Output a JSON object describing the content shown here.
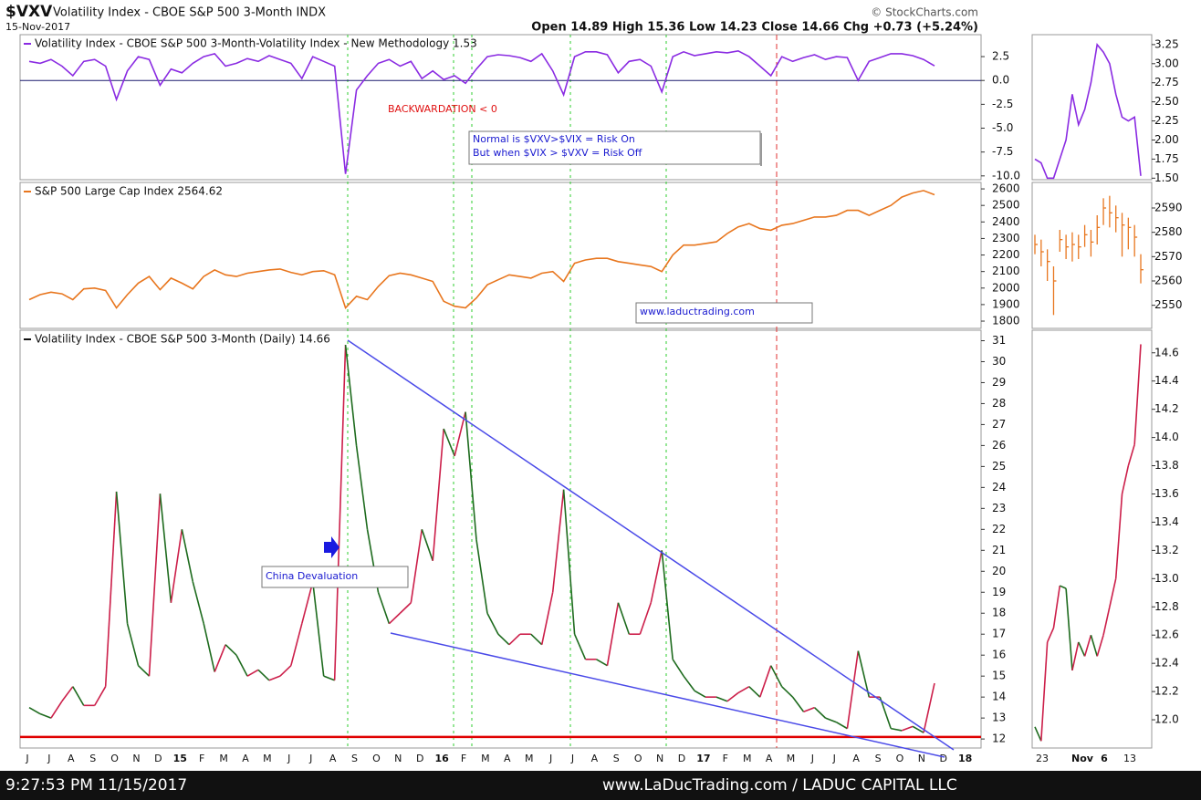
{
  "header": {
    "symbol": "$VXV",
    "name": "Volatility Index - CBOE S&P 500 3-Month INDX",
    "date": "15-Nov-2017",
    "source": "© StockCharts.com",
    "quote": "Open 14.89  High 15.36  Low 14.23  Close 14.66  Chg +0.73 (+5.24%)"
  },
  "annotations": {
    "backwardation": "BACKWARDATION < 0",
    "normal": "Normal is $VXV>$VIX = Risk On",
    "risk_off": "But when $VIX > $VXV = Risk Off",
    "website": "www.laductrading.com",
    "china": "China Devaluation"
  },
  "footer": {
    "timestamp": "9:27:53 PM 11/15/2017",
    "credit": "www.LaDucTrading.com / LADUC CAPITAL LLC"
  },
  "chart_data": [
    {
      "type": "line",
      "name": "Volatility Index - CBOE S&P 500 3-Month-Volatility Index - New Methodology 1.53",
      "color": "#8a2be2",
      "ylim": [
        -10.4,
        4.8
      ],
      "yticks": [
        2.5,
        {
          "value": 0,
          "label": "0.0"
        },
        -2.5,
        {
          "value": -5,
          "label": "-5.0"
        },
        -7.5,
        {
          "value": -10,
          "label": "-10.0"
        }
      ],
      "reference_line": 0,
      "reference_color": "#1a1a6e",
      "values": [
        2.0,
        1.8,
        2.2,
        1.5,
        0.5,
        2.0,
        2.2,
        1.5,
        -2.0,
        1.0,
        2.5,
        2.2,
        -0.5,
        1.2,
        0.8,
        1.8,
        2.5,
        2.8,
        1.5,
        1.8,
        2.3,
        2.0,
        2.6,
        2.2,
        1.8,
        0.2,
        2.5,
        2.0,
        1.5,
        -9.8,
        -1.0,
        0.5,
        1.8,
        2.2,
        1.5,
        2.0,
        0.2,
        1.0,
        0.1,
        0.5,
        -0.3,
        1.2,
        2.5,
        2.7,
        2.6,
        2.4,
        2.0,
        2.8,
        1.0,
        -1.5,
        2.5,
        3.0,
        3.0,
        2.7,
        0.8,
        2.0,
        2.2,
        1.5,
        -1.2,
        2.5,
        3.0,
        2.6,
        2.8,
        3.0,
        2.9,
        3.1,
        2.5,
        1.5,
        0.5,
        2.5,
        2.0,
        2.4,
        2.7,
        2.2,
        2.5,
        2.4,
        0.0,
        2.0,
        2.4,
        2.8,
        2.8,
        2.6,
        2.2,
        1.53
      ]
    },
    {
      "type": "line",
      "name": "S&P 500 Large Cap Index 2564.62",
      "color": "#e8761e",
      "ylim": [
        1756,
        2639
      ],
      "yticks": [
        2600,
        2500,
        2400,
        2300,
        2200,
        2100,
        2000,
        1900,
        1800
      ],
      "values": [
        1930,
        1960,
        1975,
        1965,
        1930,
        1995,
        2000,
        1985,
        1880,
        1960,
        2030,
        2070,
        1990,
        2060,
        2030,
        1995,
        2070,
        2110,
        2080,
        2070,
        2090,
        2100,
        2110,
        2115,
        2095,
        2080,
        2100,
        2105,
        2080,
        1880,
        1950,
        1930,
        2010,
        2075,
        2090,
        2080,
        2060,
        2040,
        1920,
        1890,
        1880,
        1940,
        2020,
        2050,
        2080,
        2070,
        2060,
        2090,
        2100,
        2040,
        2150,
        2170,
        2180,
        2180,
        2160,
        2150,
        2140,
        2130,
        2100,
        2200,
        2260,
        2260,
        2270,
        2280,
        2330,
        2370,
        2390,
        2360,
        2350,
        2380,
        2390,
        2410,
        2430,
        2430,
        2440,
        2470,
        2470,
        2440,
        2470,
        2500,
        2550,
        2575,
        2590,
        2564.62
      ]
    },
    {
      "type": "line",
      "name": "Volatility Index - CBOE S&P 500 3-Month (Daily) 14.66",
      "up_color": "#cc1f4a",
      "down_color": "#1e6b1e",
      "ylim": [
        11.57,
        31.5
      ],
      "yticks": [
        31,
        30,
        29,
        28,
        27,
        26,
        25,
        24,
        23,
        22,
        21,
        20,
        19,
        18,
        17,
        16,
        15,
        14,
        13,
        12
      ],
      "reference_line": 12.1,
      "reference_color": "#e00000",
      "x_labels": [
        "J",
        "J",
        "A",
        "S",
        "O",
        "N",
        "D",
        "15",
        "F",
        "M",
        "A",
        "M",
        "J",
        "J",
        "A",
        "S",
        "O",
        "N",
        "D",
        "16",
        "F",
        "M",
        "A",
        "M",
        "J",
        "J",
        "A",
        "S",
        "O",
        "N",
        "D",
        "17",
        "F",
        "M",
        "A",
        "M",
        "J",
        "J",
        "A",
        "S",
        "O",
        "N",
        "D",
        "18"
      ],
      "values": [
        13.5,
        13.2,
        13.0,
        13.8,
        14.5,
        13.6,
        13.6,
        14.5,
        23.8,
        17.5,
        15.5,
        15.0,
        23.7,
        18.5,
        22.0,
        19.5,
        17.5,
        15.2,
        16.5,
        16.0,
        15.0,
        15.3,
        14.8,
        15.0,
        15.5,
        17.5,
        19.5,
        15.0,
        14.8,
        30.8,
        26.0,
        22.0,
        19.0,
        17.5,
        18.0,
        18.5,
        22.0,
        20.5,
        26.8,
        25.5,
        27.6,
        21.5,
        18.0,
        17.0,
        16.5,
        17.0,
        17.0,
        16.5,
        19.0,
        23.9,
        17.0,
        15.8,
        15.8,
        15.5,
        18.5,
        17.0,
        17.0,
        18.5,
        21.0,
        15.8,
        15.0,
        14.3,
        14.0,
        14.0,
        13.8,
        14.2,
        14.5,
        14.0,
        15.5,
        14.5,
        14.0,
        13.3,
        13.5,
        13.0,
        12.8,
        12.5,
        16.2,
        14.0,
        14.0,
        12.5,
        12.4,
        12.6,
        12.3,
        14.66
      ]
    },
    {
      "type": "line",
      "color": "#8a2be2",
      "ylim": [
        1.48,
        3.38
      ],
      "yticks": [
        3.25,
        {
          "value": 3,
          "label": "3.00"
        },
        2.75,
        {
          "value": 2.5,
          "label": "2.50"
        },
        2.25,
        {
          "value": 2,
          "label": "2.00"
        },
        1.75,
        {
          "value": 1.5,
          "label": "1.50"
        }
      ],
      "values": [
        1.75,
        1.7,
        1.5,
        1.5,
        1.75,
        2.0,
        2.6,
        2.2,
        2.4,
        2.75,
        3.25,
        3.15,
        3.0,
        2.6,
        2.3,
        2.25,
        2.3,
        1.53
      ]
    },
    {
      "type": "ohlc",
      "color": "#e8761e",
      "ylim": [
        2540.5,
        2600.5
      ],
      "yticks": [
        2590,
        2580,
        2570,
        2560,
        2550
      ],
      "high": [
        2579,
        2577,
        2573,
        2566,
        2581,
        2579,
        2580,
        2579,
        2583,
        2581,
        2587,
        2594,
        2595,
        2591,
        2588,
        2586,
        2583,
        2571
      ],
      "low": [
        2571,
        2566,
        2560,
        2546,
        2572,
        2569,
        2568,
        2569,
        2574,
        2570,
        2575,
        2583,
        2582,
        2580,
        2570,
        2573,
        2570,
        2559
      ],
      "values": [
        2575,
        2572,
        2568,
        2560,
        2577,
        2574,
        2575,
        2574,
        2579,
        2576,
        2582,
        2590,
        2588,
        2586,
        2583,
        2582,
        2578,
        2564.62
      ]
    },
    {
      "type": "line",
      "up_color": "#cc1f4a",
      "down_color": "#1e6b1e",
      "ylim": [
        11.8,
        14.76
      ],
      "yticks": [
        14.6,
        14.4,
        14.2,
        {
          "value": 14,
          "label": "14.0"
        },
        13.8,
        13.6,
        13.4,
        13.2,
        {
          "value": 13,
          "label": "13.0"
        },
        12.8,
        12.6,
        12.4,
        12.2,
        {
          "value": 12,
          "label": "12.0"
        }
      ],
      "x_labels": [
        "23",
        "Nov",
        "6",
        "13"
      ],
      "values": [
        11.95,
        11.85,
        12.55,
        12.65,
        12.95,
        12.93,
        12.35,
        12.55,
        12.45,
        12.6,
        12.45,
        12.6,
        12.8,
        13.0,
        13.6,
        13.8,
        13.95,
        14.66
      ]
    }
  ]
}
